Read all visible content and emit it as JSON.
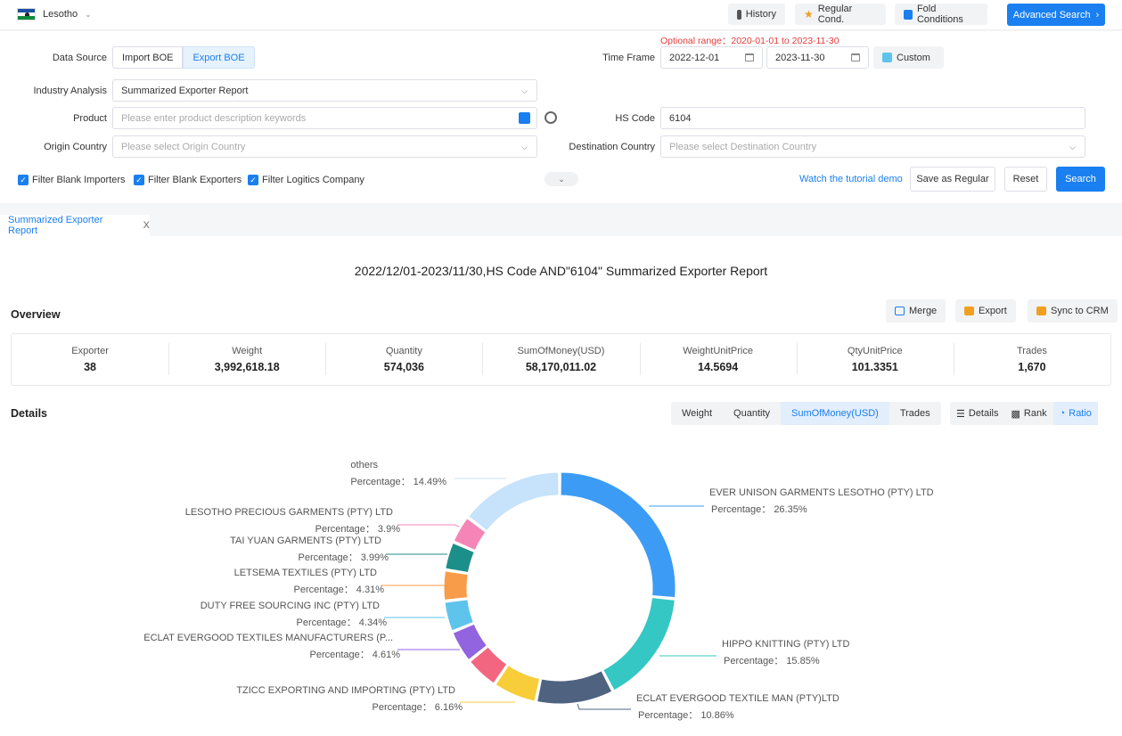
{
  "topbar": {
    "country": "Lesotho",
    "history": "History",
    "regular": "Regular Cond.",
    "fold": "Fold Conditions",
    "advanced": "Advanced Search"
  },
  "form": {
    "data_source_label": "Data Source",
    "import_boe": "Import BOE",
    "export_boe": "Export BOE",
    "optional_range": "Optional range：2020-01-01 to 2023-11-30",
    "time_frame_label": "Time Frame",
    "date_from": "2022-12-01",
    "date_to": "2023-11-30",
    "custom": "Custom",
    "industry_label": "Industry Analysis",
    "industry_value": "Summarized Exporter Report",
    "product_label": "Product",
    "product_placeholder": "Please enter product description keywords",
    "hs_label": "HS Code",
    "hs_value": "6104",
    "origin_label": "Origin Country",
    "origin_placeholder": "Please select Origin Country",
    "dest_label": "Destination Country",
    "dest_placeholder": "Please select Destination Country",
    "filters": [
      "Filter Blank Importers",
      "Filter Blank Exporters",
      "Filter Logitics Company"
    ],
    "tutorial": "Watch the tutorial demo",
    "save_regular": "Save as Regular",
    "reset": "Reset",
    "search": "Search"
  },
  "tab": {
    "label": "Summarized Exporter Report",
    "close": "X"
  },
  "report": {
    "title": "2022/12/01-2023/11/30,HS Code AND\"6104\" Summarized Exporter Report",
    "overview": "Overview",
    "merge": "Merge",
    "export": "Export",
    "sync": "Sync to CRM",
    "stats": [
      {
        "k": "Exporter",
        "v": "38"
      },
      {
        "k": "Weight",
        "v": "3,992,618.18"
      },
      {
        "k": "Quantity",
        "v": "574,036"
      },
      {
        "k": "SumOfMoney(USD)",
        "v": "58,170,011.02"
      },
      {
        "k": "WeightUnitPrice",
        "v": "14.5694"
      },
      {
        "k": "QtyUnitPrice",
        "v": "101.3351"
      },
      {
        "k": "Trades",
        "v": "1,670"
      }
    ],
    "details": "Details",
    "metric_tabs": [
      "Weight",
      "Quantity",
      "SumOfMoney(USD)",
      "Trades"
    ],
    "view_tabs": [
      "Details",
      "Rank",
      "Ratio"
    ]
  },
  "chart_data": {
    "type": "pie",
    "donut": true,
    "value_prefix": "Percentage：",
    "slices": [
      {
        "label": "EVER UNISON GARMENTS LESOTHO (PTY) LTD",
        "value": 26.35,
        "color": "#3c9cf5"
      },
      {
        "label": "HIPPO KNITTING (PTY) LTD",
        "value": 15.85,
        "color": "#34c7c4"
      },
      {
        "label": "ECLAT EVERGOOD TEXTILE MAN (PTY)LTD",
        "value": 10.86,
        "color": "#4f6381"
      },
      {
        "label": "TZICC EXPORTING AND IMPORTING (PTY) LTD",
        "value": 6.16,
        "color": "#f7cd3a"
      },
      {
        "label": "",
        "value": 4.7,
        "color": "#f2667f"
      },
      {
        "label": "ECLAT EVERGOOD TEXTILES MANUFACTURERS (P...",
        "value": 4.61,
        "color": "#9364e0"
      },
      {
        "label": "DUTY FREE SOURCING INC (PTY) LTD",
        "value": 4.34,
        "color": "#5ec4ec"
      },
      {
        "label": "LETSEMA TEXTILES (PTY) LTD",
        "value": 4.31,
        "color": "#f99c4a"
      },
      {
        "label": "TAI YUAN GARMENTS (PTY) LTD",
        "value": 3.99,
        "color": "#1d8f8a"
      },
      {
        "label": "LESOTHO PRECIOUS GARMENTS (PTY) LTD",
        "value": 3.9,
        "color": "#f585b7"
      },
      {
        "label": "others",
        "value": 14.49,
        "color": "#c7e2fb"
      }
    ]
  }
}
